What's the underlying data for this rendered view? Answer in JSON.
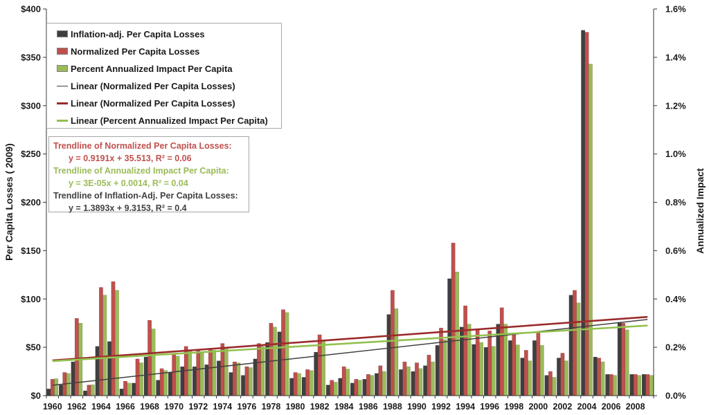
{
  "colors": {
    "inflation_bar": "#3f3f3f",
    "normalized_bar": "#c0504d",
    "percent_bar": "#9bbb59",
    "trend_inflation": "#404040",
    "trend_normalized": "#9b2b2b",
    "trend_percent": "#92c14f"
  },
  "legend": {
    "items": [
      {
        "label": "Inflation-adj. Per Capita Losses",
        "kind": "bar",
        "color": "#3f3f3f"
      },
      {
        "label": "Normalized Per Capita Losses",
        "kind": "bar",
        "color": "#c0504d"
      },
      {
        "label": "Percent Annualized Impact Per Capita",
        "kind": "bar",
        "color": "#9bbb59"
      },
      {
        "label": "Linear (Normalized Per Capita Losses)",
        "kind": "line",
        "color": "#404040"
      },
      {
        "label": "Linear (Normalized Per Capita Losses)",
        "kind": "line",
        "color": "#9b2b2b"
      },
      {
        "label": "Linear (Percent Annualized Impact Per Capita)",
        "kind": "line",
        "color": "#92c14f"
      }
    ]
  },
  "trend_box": {
    "normalized_title": "Trendline of Normalized Per Capita Losses:",
    "normalized_eq": "y = 0.9191x + 35.513, R² = 0.06",
    "annualized_title": "Trendline of Annualized Impact Per Capita:",
    "annualized_eq": "y = 3E-05x + 0.0014, R² = 0.04",
    "inflation_title": "Trendline of Inflation-Adj. Per Capita Losses:",
    "inflation_eq": "y = 1.3893x + 9.3153, R² = 0.4"
  },
  "chart_data": {
    "type": "bar",
    "ylabel": "Per Capita Losses ( 2009)",
    "y2label": "Annualized Impact",
    "ylim": [
      0,
      400
    ],
    "y2lim": [
      0,
      0.016
    ],
    "y_ticks": [
      "$0",
      "$50",
      "$100",
      "$150",
      "$200",
      "$250",
      "$300",
      "$350",
      "$400"
    ],
    "y2_ticks": [
      "0.0%",
      "0.2%",
      "0.4%",
      "0.6%",
      "0.8%",
      "1.0%",
      "1.2%",
      "1.4%",
      "1.6%"
    ],
    "x_tick_labels": [
      "1960",
      "1962",
      "1964",
      "1966",
      "1968",
      "1970",
      "1972",
      "1974",
      "1976",
      "1978",
      "1980",
      "1982",
      "1984",
      "1986",
      "1988",
      "1990",
      "1992",
      "1994",
      "1996",
      "1998",
      "2000",
      "2002",
      "2004",
      "2006",
      "2008"
    ],
    "categories": [
      1960,
      1961,
      1962,
      1963,
      1964,
      1965,
      1966,
      1967,
      1968,
      1969,
      1970,
      1971,
      1972,
      1973,
      1974,
      1975,
      1976,
      1977,
      1978,
      1979,
      1980,
      1981,
      1982,
      1983,
      1984,
      1985,
      1986,
      1987,
      1988,
      1989,
      1990,
      1991,
      1992,
      1993,
      1994,
      1995,
      1996,
      1997,
      1998,
      1999,
      2000,
      2001,
      2002,
      2003,
      2004,
      2005,
      2006,
      2007,
      2008,
      2009
    ],
    "series": [
      {
        "name": "Inflation-adj. Per Capita Losses",
        "axis": "left",
        "values": [
          7,
          11,
          35,
          5,
          51,
          56,
          7,
          13,
          40,
          16,
          24,
          30,
          30,
          32,
          36,
          24,
          21,
          38,
          55,
          66,
          18,
          19,
          45,
          11,
          18,
          13,
          17,
          23,
          84,
          27,
          25,
          31,
          52,
          121,
          71,
          53,
          50,
          74,
          57,
          39,
          57,
          21,
          39,
          104,
          378,
          40,
          22,
          76,
          22,
          22
        ]
      },
      {
        "name": "Normalized Per Capita Losses",
        "axis": "left",
        "values": [
          17,
          24,
          80,
          11,
          112,
          118,
          15,
          38,
          78,
          28,
          43,
          51,
          48,
          49,
          54,
          35,
          30,
          54,
          75,
          89,
          24,
          27,
          63,
          16,
          30,
          17,
          22,
          31,
          109,
          35,
          34,
          42,
          70,
          158,
          93,
          68,
          67,
          91,
          65,
          47,
          66,
          25,
          44,
          109,
          376,
          39,
          22,
          75,
          22,
          22
        ]
      },
      {
        "name": "Percent Annualized Impact Per Capita",
        "axis": "right",
        "values": [
          0.0007,
          0.00092,
          0.003,
          0.00045,
          0.00416,
          0.00436,
          0.00052,
          0.00136,
          0.00276,
          0.00104,
          0.00164,
          0.00184,
          0.00176,
          0.00188,
          0.002,
          0.00136,
          0.00116,
          0.00204,
          0.00284,
          0.00344,
          0.00092,
          0.00104,
          0.00228,
          0.00056,
          0.0011,
          0.00064,
          0.00084,
          0.001,
          0.0036,
          0.0012,
          0.00112,
          0.0014,
          0.00232,
          0.00512,
          0.00296,
          0.0022,
          0.00204,
          0.00296,
          0.0021,
          0.00144,
          0.00208,
          0.00076,
          0.00144,
          0.00384,
          0.01372,
          0.0014,
          0.00084,
          0.00272,
          0.00084,
          0.00084
        ]
      }
    ],
    "trendlines": [
      {
        "name": "Linear (Normalized Per Capita Losses)",
        "color": "#404040",
        "slope": 1.3893,
        "intercept": 9.3153,
        "axis": "left"
      },
      {
        "name": "Linear (Normalized Per Capita Losses)",
        "color": "#9b2b2b",
        "slope": 0.9191,
        "intercept": 35.513,
        "axis": "left"
      },
      {
        "name": "Linear (Percent Annualized Impact Per Capita)",
        "color": "#92c14f",
        "slope": 3e-05,
        "intercept": 0.0014,
        "axis": "right"
      }
    ],
    "legend": "top-left",
    "grid": false
  }
}
